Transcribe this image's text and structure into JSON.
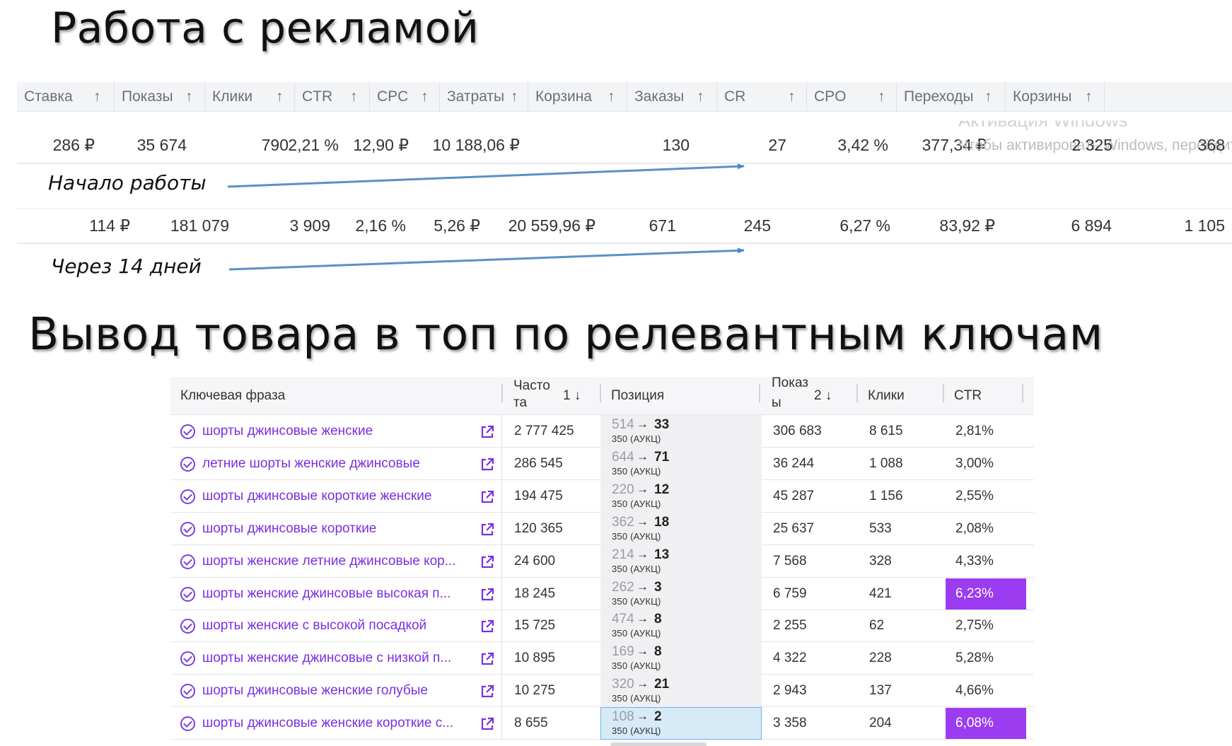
{
  "title_ads": "Работа с рекламой",
  "title_top": "Вывод товара в топ по релевантным ключам",
  "ad_table": {
    "headers": [
      "Ставка",
      "Показы",
      "Клики",
      "CTR",
      "CPC",
      "Затраты",
      "Корзина",
      "Заказы",
      "CR",
      "CPO",
      "Переходы",
      "Корзины"
    ],
    "arrow": "↑",
    "rows": [
      [
        "286 ₽",
        "35 674",
        "790",
        "2,21 %",
        "12,90 ₽",
        "10 188,06 ₽",
        "130",
        "27",
        "3,42 %",
        "377,34 ₽",
        "2 325",
        "368"
      ],
      [
        "114 ₽",
        "181 079",
        "3 909",
        "2,16 %",
        "5,26 ₽",
        "20 559,96 ₽",
        "671",
        "245",
        "6,27 %",
        "83,92 ₽",
        "6 894",
        "1 105"
      ]
    ],
    "watermark_line1": "Активация Windows",
    "watermark_line2": "Чтобы активировать Windows, перейдите"
  },
  "notes": {
    "start": "Начало работы",
    "after": "Через 14 дней"
  },
  "keywords": {
    "headers": {
      "phrase": "Ключевая фраза",
      "freq_line1": "Часто",
      "freq_line2": "та",
      "freq_sort": "1 ↓",
      "position": "Позиция",
      "shows_line1": "Показ",
      "shows_line2": "ы",
      "shows_sort": "2 ↓",
      "clicks": "Клики",
      "ctr": "CTR"
    },
    "highlight_color": "#9b3cf0",
    "link_color": "#7b2fe0",
    "rows": [
      {
        "phrase": "шорты джинсовые женские",
        "freq": "2 777 425",
        "pos_old": "514",
        "pos_new": "33",
        "pos_sub": "350 (АУКЦ)",
        "shows": "306 683",
        "clicks": "8 615",
        "ctr": "2,81%",
        "hl": false,
        "sel": false
      },
      {
        "phrase": "летние шорты женские джинсовые",
        "freq": "286 545",
        "pos_old": "644",
        "pos_new": "71",
        "pos_sub": "350 (АУКЦ)",
        "shows": "36 244",
        "clicks": "1 088",
        "ctr": "3,00%",
        "hl": false,
        "sel": false
      },
      {
        "phrase": "шорты джинсовые короткие женские",
        "freq": "194 475",
        "pos_old": "220",
        "pos_new": "12",
        "pos_sub": "350 (АУКЦ)",
        "shows": "45 287",
        "clicks": "1 156",
        "ctr": "2,55%",
        "hl": false,
        "sel": false
      },
      {
        "phrase": "шорты джинсовые короткие",
        "freq": "120 365",
        "pos_old": "362",
        "pos_new": "18",
        "pos_sub": "350 (АУКЦ)",
        "shows": "25 637",
        "clicks": "533",
        "ctr": "2,08%",
        "hl": false,
        "sel": false
      },
      {
        "phrase": "шорты женские летние джинсовые кор...",
        "freq": "24 600",
        "pos_old": "214",
        "pos_new": "13",
        "pos_sub": "350 (АУКЦ)",
        "shows": "7 568",
        "clicks": "328",
        "ctr": "4,33%",
        "hl": false,
        "sel": false
      },
      {
        "phrase": "шорты женские джинсовые высокая п...",
        "freq": "18 245",
        "pos_old": "262",
        "pos_new": "3",
        "pos_sub": "350 (АУКЦ)",
        "shows": "6 759",
        "clicks": "421",
        "ctr": "6,23%",
        "hl": true,
        "sel": false
      },
      {
        "phrase": "шорты женские с высокой посадкой",
        "freq": "15 725",
        "pos_old": "474",
        "pos_new": "8",
        "pos_sub": "350 (АУКЦ)",
        "shows": "2 255",
        "clicks": "62",
        "ctr": "2,75%",
        "hl": false,
        "sel": false
      },
      {
        "phrase": "шорты женские джинсовые с низкой п...",
        "freq": "10 895",
        "pos_old": "169",
        "pos_new": "8",
        "pos_sub": "350 (АУКЦ)",
        "shows": "4 322",
        "clicks": "228",
        "ctr": "5,28%",
        "hl": false,
        "sel": false
      },
      {
        "phrase": "шорты джинсовые женские голубые",
        "freq": "10 275",
        "pos_old": "320",
        "pos_new": "21",
        "pos_sub": "350 (АУКЦ)",
        "shows": "2 943",
        "clicks": "137",
        "ctr": "4,66%",
        "hl": false,
        "sel": false
      },
      {
        "phrase": "шорты джинсовые женские короткие с...",
        "freq": "8 655",
        "pos_old": "108",
        "pos_new": "2",
        "pos_sub": "350 (АУКЦ)",
        "shows": "3 358",
        "clicks": "204",
        "ctr": "6,08%",
        "hl": true,
        "sel": true
      }
    ]
  }
}
